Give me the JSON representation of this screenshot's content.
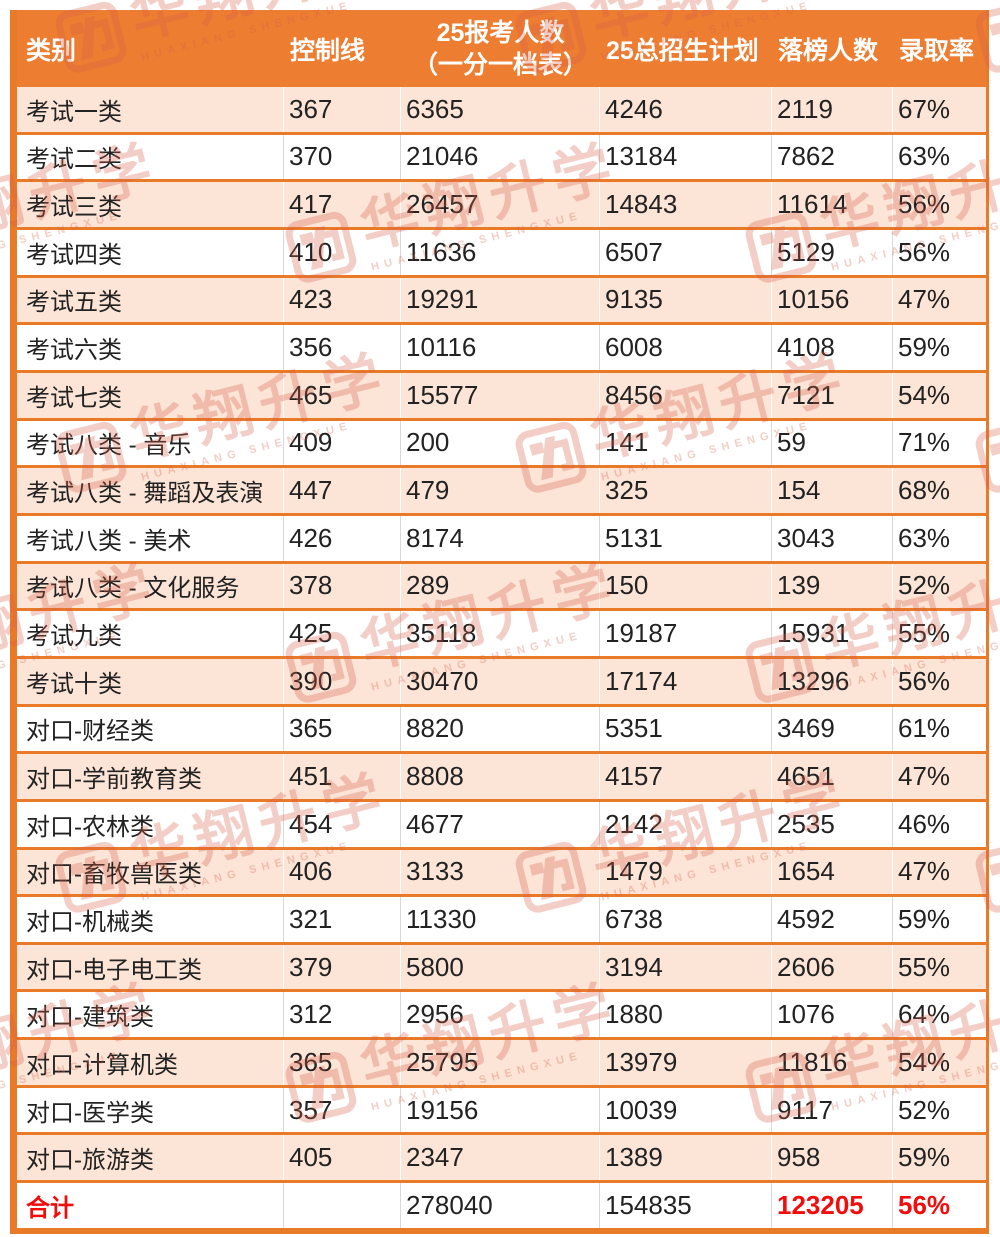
{
  "chart_data": {
    "type": "table",
    "columns": [
      {
        "label": "类别"
      },
      {
        "label": "控制线"
      },
      {
        "label": "25报考人数",
        "sublabel": "（一分一档表）"
      },
      {
        "label": "25总招生计划"
      },
      {
        "label": "落榜人数"
      },
      {
        "label": "录取率"
      }
    ],
    "rows": [
      [
        "考试一类",
        "367",
        "6365",
        "4246",
        "2119",
        "67%"
      ],
      [
        "考试二类",
        "370",
        "21046",
        "13184",
        "7862",
        "63%"
      ],
      [
        "考试三类",
        "417",
        "26457",
        "14843",
        "11614",
        "56%"
      ],
      [
        "考试四类",
        "410",
        "11636",
        "6507",
        "5129",
        "56%"
      ],
      [
        "考试五类",
        "423",
        "19291",
        "9135",
        "10156",
        "47%"
      ],
      [
        "考试六类",
        "356",
        "10116",
        "6008",
        "4108",
        "59%"
      ],
      [
        "考试七类",
        "465",
        "15577",
        "8456",
        "7121",
        "54%"
      ],
      [
        "考试八类 - 音乐",
        "409",
        "200",
        "141",
        "59",
        "71%"
      ],
      [
        "考试八类 - 舞蹈及表演",
        "447",
        "479",
        "325",
        "154",
        "68%"
      ],
      [
        "考试八类 - 美术",
        "426",
        "8174",
        "5131",
        "3043",
        "63%"
      ],
      [
        "考试八类 - 文化服务",
        "378",
        "289",
        "150",
        "139",
        "52%"
      ],
      [
        "考试九类",
        "425",
        "35118",
        "19187",
        "15931",
        "55%"
      ],
      [
        "考试十类",
        "390",
        "30470",
        "17174",
        "13296",
        "56%"
      ],
      [
        "对口-财经类",
        "365",
        "8820",
        "5351",
        "3469",
        "61%"
      ],
      [
        "对口-学前教育类",
        "451",
        "8808",
        "4157",
        "4651",
        "47%"
      ],
      [
        "对口-农林类",
        "454",
        "4677",
        "2142",
        "2535",
        "46%"
      ],
      [
        "对口-畜牧兽医类",
        "406",
        "3133",
        "1479",
        "1654",
        "47%"
      ],
      [
        "对口-机械类",
        "321",
        "11330",
        "6738",
        "4592",
        "59%"
      ],
      [
        "对口-电子电工类",
        "379",
        "5800",
        "3194",
        "2606",
        "55%"
      ],
      [
        "对口-建筑类",
        "312",
        "2956",
        "1880",
        "1076",
        "64%"
      ],
      [
        "对口-计算机类",
        "365",
        "25795",
        "13979",
        "11816",
        "54%"
      ],
      [
        "对口-医学类",
        "357",
        "19156",
        "10039",
        "9117",
        "52%"
      ],
      [
        "对口-旅游类",
        "405",
        "2347",
        "1389",
        "958",
        "59%"
      ]
    ],
    "total_row": [
      "合计",
      "",
      "278040",
      "154835",
      "123205",
      "56%"
    ]
  },
  "watermark": {
    "icon": "huaxiang-seal-logo",
    "text_cn": "华翔升学",
    "text_en": "HUAXIANG SHENGXUE"
  },
  "colors": {
    "accent_orange": "#ED7D31",
    "border_orange": "#E97A28",
    "row_peach": "#FCE4D6",
    "row_white": "#FFFFFF",
    "header_text": "#FFFFFF",
    "text_black": "#222222",
    "total_red": "#F20D0D",
    "separator_gray": "#D9D9D9",
    "watermark_red": "#D95F49"
  }
}
